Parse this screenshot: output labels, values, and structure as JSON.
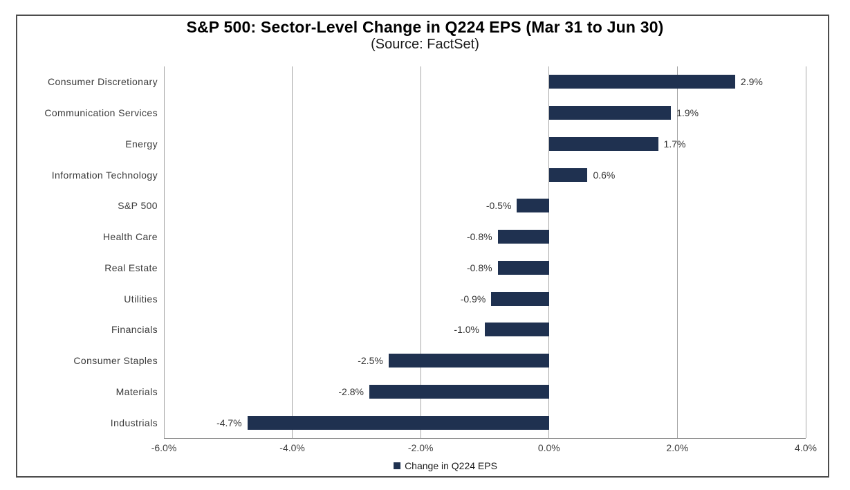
{
  "colors": {
    "bar": "#1F3150",
    "grid": "#A6A6A6",
    "axis": "#8C8C8C",
    "frame_border": "#4D4D4D",
    "value_label_text": "#333333",
    "category_text": "#3A3A3A",
    "tick_text": "#404040",
    "background": "#FFFFFF"
  },
  "legend": {
    "marker": "square-icon",
    "label": "Change in Q224 EPS"
  },
  "chart_data": {
    "type": "bar",
    "orientation": "horizontal",
    "title": "S&P 500: Sector-Level Change in Q224 EPS (Mar 31 to Jun 30)",
    "subtitle": "(Source: FactSet)",
    "categories": [
      "Consumer Discretionary",
      "Communication Services",
      "Energy",
      "Information Technology",
      "S&P 500",
      "Health Care",
      "Real Estate",
      "Utilities",
      "Financials",
      "Consumer Staples",
      "Materials",
      "Industrials"
    ],
    "values": [
      2.9,
      1.9,
      1.7,
      0.6,
      -0.5,
      -0.8,
      -0.8,
      -0.9,
      -1.0,
      -2.5,
      -2.8,
      -4.7
    ],
    "labels": [
      "2.9%",
      "1.9%",
      "1.7%",
      "0.6%",
      "-0.5%",
      "-0.8%",
      "-0.8%",
      "-0.9%",
      "-1.0%",
      "-2.5%",
      "-2.8%",
      "-4.7%"
    ],
    "xlabel": "",
    "ylabel": "",
    "xlim": [
      -6.0,
      4.0
    ],
    "xticks": [
      -6.0,
      -4.0,
      -2.0,
      0.0,
      2.0,
      4.0
    ],
    "xtick_labels": [
      "-6.0%",
      "-4.0%",
      "-2.0%",
      "0.0%",
      "2.0%",
      "4.0%"
    ],
    "grid": "vertical",
    "legend": [
      "Change in Q224 EPS"
    ],
    "legend_position": "bottom"
  }
}
